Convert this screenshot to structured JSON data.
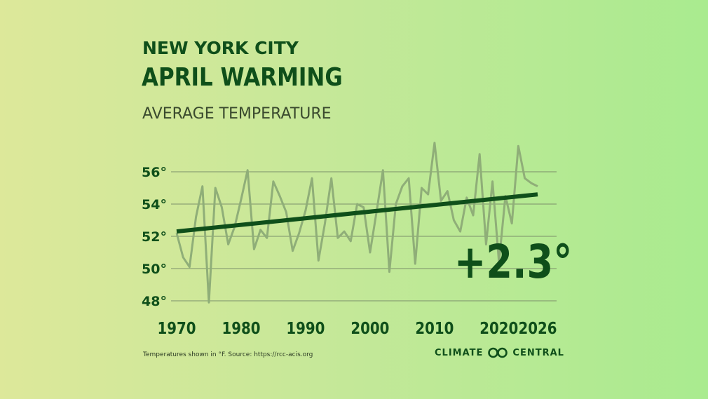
{
  "header": {
    "title_line1": "NEW YORK CITY",
    "title_line2": "APRIL WARMING",
    "subtitle": "AVERAGE TEMPERATURE"
  },
  "annotation": "+2.3°",
  "footer": {
    "note": "Temperatures shown in °F. Source: https://rcc-acis.org",
    "brand_left": "CLIMATE",
    "brand_right": "CENTRAL"
  },
  "colors": {
    "dark_green": "#0f4f1a",
    "data_line": "#8fae78",
    "grid": "#7b8f6a"
  },
  "chart_data": {
    "type": "line",
    "title": "APRIL WARMING",
    "ylim": [
      48,
      56
    ],
    "yticks": [
      48,
      50,
      52,
      54,
      56
    ],
    "ytick_labels": [
      "48°",
      "50°",
      "52°",
      "54°",
      "56°"
    ],
    "xlim": [
      1970,
      2026
    ],
    "xticks": [
      1970,
      1980,
      1990,
      2000,
      2010,
      2020,
      2026
    ],
    "xtick_labels": [
      "1970",
      "1980",
      "1990",
      "2000",
      "2010",
      "2020",
      "2026"
    ],
    "grid": true,
    "series": [
      {
        "x": [
          1970,
          1971,
          1972,
          1973,
          1974,
          1975,
          1976,
          1977,
          1978,
          1979,
          1980,
          1981,
          1982,
          1983,
          1984,
          1985,
          1986,
          1987,
          1988,
          1989,
          1990,
          1991,
          1992,
          1993,
          1994,
          1995,
          1996,
          1997,
          1998,
          1999,
          2000,
          2001,
          2002,
          2003,
          2004,
          2005,
          2006,
          2007,
          2008,
          2009,
          2010,
          2011,
          2012,
          2013,
          2014,
          2015,
          2016,
          2017,
          2018,
          2019,
          2020,
          2021,
          2022,
          2023,
          2024,
          2025,
          2026
        ],
        "values": [
          52.2,
          50.7,
          50.1,
          53.2,
          55.1,
          47.9,
          55.0,
          53.8,
          51.5,
          52.6,
          54.3,
          56.1,
          51.2,
          52.4,
          51.9,
          55.4,
          54.5,
          53.5,
          51.1,
          52.2,
          53.6,
          55.6,
          50.5,
          52.8,
          55.6,
          51.9,
          52.3,
          51.7,
          54.0,
          53.8,
          51.0,
          53.5,
          56.1,
          49.8,
          54.0,
          55.1,
          55.6,
          50.3,
          55.0,
          54.6,
          57.8,
          54.2,
          54.8,
          53.0,
          52.3,
          54.4,
          53.3,
          57.1,
          51.5,
          55.4,
          50.4,
          54.5,
          52.8,
          57.6,
          55.6,
          55.3,
          55.1
        ]
      },
      {
        "x": [
          1970,
          2026
        ],
        "values": [
          52.3,
          54.6
        ]
      }
    ]
  }
}
